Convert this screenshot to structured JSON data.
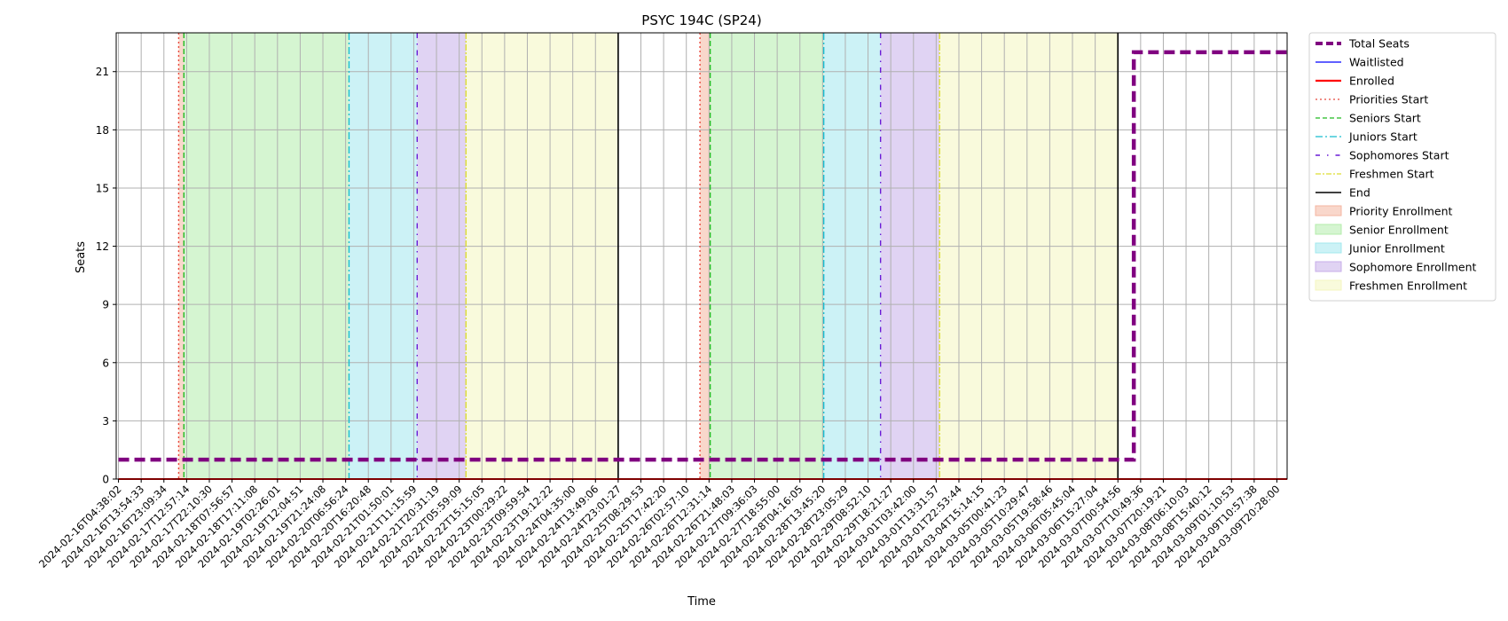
{
  "chart_data": {
    "type": "line",
    "title": "PSYC 194C (SP24)",
    "xlabel": "Time",
    "ylabel": "Seats",
    "ylim": [
      0,
      23
    ],
    "yticks": [
      0,
      3,
      6,
      9,
      12,
      15,
      18,
      21
    ],
    "grid": true,
    "legend_placement": "outside-right",
    "xlim": [
      "2024-02-16T00:00:00",
      "2024-03-09T23:59:59"
    ],
    "x_tick_labels": [
      "2024-02-16T04:38:02",
      "2024-02-16T13:54:33",
      "2024-02-16T23:09:34",
      "2024-02-17T12:57:14",
      "2024-02-17T22:10:30",
      "2024-02-18T07:56:57",
      "2024-02-18T17:11:08",
      "2024-02-19T02:26:01",
      "2024-02-19T12:04:51",
      "2024-02-19T21:24:08",
      "2024-02-20T06:56:24",
      "2024-02-20T16:20:48",
      "2024-02-21T01:50:01",
      "2024-02-21T11:15:59",
      "2024-02-21T20:31:19",
      "2024-02-22T05:59:09",
      "2024-02-22T15:15:05",
      "2024-02-23T00:29:22",
      "2024-02-23T09:59:54",
      "2024-02-23T19:12:22",
      "2024-02-24T04:35:00",
      "2024-02-24T13:49:06",
      "2024-02-24T23:01:27",
      "2024-02-25T08:29:53",
      "2024-02-25T17:42:20",
      "2024-02-26T02:57:10",
      "2024-02-26T12:31:14",
      "2024-02-26T21:48:03",
      "2024-02-27T09:36:03",
      "2024-02-27T18:55:00",
      "2024-02-28T04:16:05",
      "2024-02-28T13:45:20",
      "2024-02-28T23:05:29",
      "2024-02-29T08:52:10",
      "2024-02-29T18:21:27",
      "2024-03-01T03:42:00",
      "2024-03-01T13:31:57",
      "2024-03-01T22:53:44",
      "2024-03-04T15:14:15",
      "2024-03-05T00:41:23",
      "2024-03-05T10:29:47",
      "2024-03-05T19:58:46",
      "2024-03-06T05:45:04",
      "2024-03-06T15:27:04",
      "2024-03-07T00:54:56",
      "2024-03-07T10:49:36",
      "2024-03-07T20:19:21",
      "2024-03-08T06:10:03",
      "2024-03-08T15:40:12",
      "2024-03-09T01:10:53",
      "2024-03-09T10:57:38",
      "2024-03-09T20:28:00"
    ],
    "series": [
      {
        "name": "Total Seats",
        "color": "#800080",
        "style": "dashed-thick",
        "points": [
          {
            "x": 0,
            "y": 1
          },
          {
            "x": 44.7,
            "y": 1
          },
          {
            "x": 44.7,
            "y": 22
          },
          {
            "x": 51.45,
            "y": 22
          }
        ]
      },
      {
        "name": "Waitlisted",
        "color": "#0000ff",
        "style": "solid",
        "points": [
          {
            "x": 0,
            "y": 0
          },
          {
            "x": 51.45,
            "y": 0
          }
        ]
      },
      {
        "name": "Enrolled",
        "color": "#ff0000",
        "style": "solid",
        "points": [
          {
            "x": 0,
            "y": 0
          },
          {
            "x": 51.45,
            "y": 0
          }
        ]
      }
    ],
    "x_domain_index": [
      -0.1,
      51.45
    ],
    "vertical_lines": [
      {
        "name": "Priorities Start",
        "color": "#e8483c",
        "dash": "2,3",
        "x": [
          2.65,
          25.6
        ]
      },
      {
        "name": "Seniors Start",
        "color": "#22bb22",
        "dash": "6,3",
        "x": [
          2.88,
          26.05
        ]
      },
      {
        "name": "Juniors Start",
        "color": "#17becf",
        "dash": "8,3,2,3",
        "x": [
          10.15,
          31.05
        ]
      },
      {
        "name": "Sophomores Start",
        "color": "#6a1bd6",
        "dash": "6,6,1.5,6",
        "x": [
          13.15,
          33.55
        ]
      },
      {
        "name": "Freshmen Start",
        "color": "#dddd33",
        "dash": "7,2,2,2",
        "x": [
          15.3,
          36.15
        ]
      },
      {
        "name": "End",
        "color": "#000000",
        "dash": "",
        "x": [
          22.0,
          44.0
        ]
      }
    ],
    "spans": [
      {
        "name": "Priority Enrollment",
        "color": "#f4b6a0",
        "ranges": [
          [
            2.65,
            2.88
          ],
          [
            25.6,
            26.05
          ]
        ]
      },
      {
        "name": "Senior Enrollment",
        "color": "#b3ecab",
        "ranges": [
          [
            2.88,
            10.15
          ],
          [
            26.05,
            31.05
          ]
        ]
      },
      {
        "name": "Junior Enrollment",
        "color": "#a2e8ee",
        "ranges": [
          [
            10.15,
            13.15
          ],
          [
            31.05,
            33.55
          ]
        ]
      },
      {
        "name": "Sophomore Enrollment",
        "color": "#c7aeea",
        "ranges": [
          [
            13.15,
            15.3
          ],
          [
            33.55,
            36.15
          ]
        ]
      },
      {
        "name": "Freshmen Enrollment",
        "color": "#f4f6bf",
        "ranges": [
          [
            15.3,
            22.0
          ],
          [
            36.15,
            44.0
          ]
        ]
      }
    ],
    "legend": [
      {
        "label": "Total Seats",
        "kind": "line",
        "color": "#800080",
        "dash": "8,4",
        "width": 4
      },
      {
        "label": "Waitlisted",
        "kind": "line",
        "color": "#0000ff",
        "dash": "",
        "width": 1.3
      },
      {
        "label": "Enrolled",
        "kind": "line",
        "color": "#ff0000",
        "dash": "",
        "width": 2.2
      },
      {
        "label": "Priorities Start",
        "kind": "line",
        "color": "#e8483c",
        "dash": "2,3",
        "width": 1.3
      },
      {
        "label": "Seniors Start",
        "kind": "line",
        "color": "#22bb22",
        "dash": "5,3",
        "width": 1.3
      },
      {
        "label": "Juniors Start",
        "kind": "line",
        "color": "#17becf",
        "dash": "8,3,2,3",
        "width": 1.3
      },
      {
        "label": "Sophomores Start",
        "kind": "line",
        "color": "#6a1bd6",
        "dash": "5,8,1.5,8",
        "width": 1.5
      },
      {
        "label": "Freshmen Start",
        "kind": "line",
        "color": "#dddd33",
        "dash": "6,2,2,2",
        "width": 1.3
      },
      {
        "label": "End",
        "kind": "line",
        "color": "#000000",
        "dash": "",
        "width": 1.5
      },
      {
        "label": "Priority Enrollment",
        "kind": "patch",
        "color": "#f4b6a0"
      },
      {
        "label": "Senior Enrollment",
        "kind": "patch",
        "color": "#b3ecab"
      },
      {
        "label": "Junior Enrollment",
        "kind": "patch",
        "color": "#a2e8ee"
      },
      {
        "label": "Sophomore Enrollment",
        "kind": "patch",
        "color": "#c7aeea"
      },
      {
        "label": "Freshmen Enrollment",
        "kind": "patch",
        "color": "#f4f6bf"
      }
    ]
  }
}
